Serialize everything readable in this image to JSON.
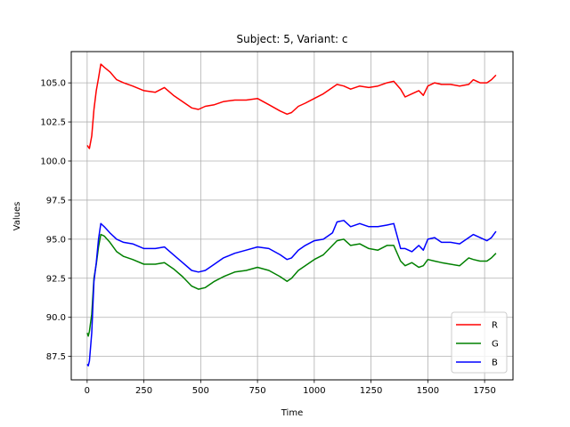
{
  "chart_data": {
    "type": "line",
    "title": "Subject: 5, Variant: c",
    "xlabel": "Time",
    "ylabel": "Values",
    "xlim": [
      -70,
      1875
    ],
    "ylim": [
      86.0,
      107.0
    ],
    "xticks": [
      0,
      250,
      500,
      750,
      1000,
      1250,
      1500,
      1750
    ],
    "yticks": [
      87.5,
      90.0,
      92.5,
      95.0,
      97.5,
      100.0,
      102.5,
      105.0
    ],
    "grid": true,
    "legend_position": "lower-right",
    "series": [
      {
        "name": "R",
        "color": "#ff0000",
        "x": [
          0,
          10,
          20,
          30,
          40,
          50,
          60,
          75,
          100,
          130,
          160,
          200,
          250,
          300,
          340,
          380,
          420,
          460,
          490,
          520,
          560,
          600,
          650,
          700,
          750,
          800,
          850,
          880,
          900,
          930,
          960,
          1000,
          1040,
          1080,
          1100,
          1130,
          1160,
          1200,
          1240,
          1280,
          1320,
          1350,
          1380,
          1400,
          1430,
          1460,
          1480,
          1500,
          1530,
          1560,
          1600,
          1640,
          1680,
          1700,
          1730,
          1760,
          1780,
          1800
        ],
        "y": [
          101.0,
          100.8,
          101.6,
          103.3,
          104.5,
          105.3,
          106.2,
          106.0,
          105.7,
          105.2,
          105.0,
          104.8,
          104.5,
          104.4,
          104.7,
          104.2,
          103.8,
          103.4,
          103.3,
          103.5,
          103.6,
          103.8,
          103.9,
          103.9,
          104.0,
          103.6,
          103.2,
          103.0,
          103.1,
          103.5,
          103.7,
          104.0,
          104.3,
          104.7,
          104.9,
          104.8,
          104.6,
          104.8,
          104.7,
          104.8,
          105.0,
          105.1,
          104.6,
          104.1,
          104.3,
          104.5,
          104.2,
          104.8,
          105.0,
          104.9,
          104.9,
          104.8,
          104.9,
          105.2,
          105.0,
          105.0,
          105.2,
          105.5
        ]
      },
      {
        "name": "G",
        "color": "#008000",
        "x": [
          0,
          5,
          10,
          20,
          30,
          40,
          50,
          60,
          75,
          100,
          130,
          160,
          200,
          250,
          300,
          340,
          380,
          420,
          460,
          490,
          520,
          560,
          600,
          650,
          700,
          750,
          800,
          850,
          880,
          900,
          930,
          960,
          1000,
          1040,
          1080,
          1100,
          1130,
          1160,
          1200,
          1240,
          1280,
          1320,
          1350,
          1380,
          1400,
          1430,
          1460,
          1480,
          1500,
          1530,
          1560,
          1600,
          1640,
          1680,
          1700,
          1730,
          1760,
          1780,
          1800
        ],
        "y": [
          89.0,
          88.8,
          89.1,
          90.2,
          92.5,
          93.4,
          94.5,
          95.3,
          95.2,
          94.8,
          94.2,
          93.9,
          93.7,
          93.4,
          93.4,
          93.5,
          93.1,
          92.6,
          92.0,
          91.8,
          91.9,
          92.3,
          92.6,
          92.9,
          93.0,
          93.2,
          93.0,
          92.6,
          92.3,
          92.5,
          93.0,
          93.3,
          93.7,
          94.0,
          94.6,
          94.9,
          95.0,
          94.6,
          94.7,
          94.4,
          94.3,
          94.6,
          94.6,
          93.6,
          93.3,
          93.5,
          93.2,
          93.3,
          93.7,
          93.6,
          93.5,
          93.4,
          93.3,
          93.8,
          93.7,
          93.6,
          93.6,
          93.8,
          94.1
        ]
      },
      {
        "name": "B",
        "color": "#0000ff",
        "x": [
          0,
          5,
          10,
          20,
          30,
          40,
          50,
          60,
          75,
          100,
          130,
          160,
          200,
          250,
          300,
          340,
          380,
          420,
          460,
          490,
          520,
          560,
          600,
          650,
          700,
          750,
          800,
          850,
          880,
          900,
          930,
          960,
          1000,
          1040,
          1080,
          1100,
          1130,
          1160,
          1200,
          1240,
          1280,
          1320,
          1350,
          1380,
          1400,
          1430,
          1460,
          1480,
          1500,
          1530,
          1560,
          1600,
          1640,
          1680,
          1700,
          1730,
          1760,
          1780,
          1800
        ],
        "y": [
          87.0,
          86.9,
          87.2,
          89.0,
          92.3,
          93.5,
          95.0,
          96.0,
          95.8,
          95.4,
          95.0,
          94.8,
          94.7,
          94.4,
          94.4,
          94.5,
          94.0,
          93.5,
          93.0,
          92.9,
          93.0,
          93.4,
          93.8,
          94.1,
          94.3,
          94.5,
          94.4,
          94.0,
          93.7,
          93.8,
          94.3,
          94.6,
          94.9,
          95.0,
          95.4,
          96.1,
          96.2,
          95.8,
          96.0,
          95.8,
          95.8,
          95.9,
          96.0,
          94.4,
          94.4,
          94.2,
          94.6,
          94.3,
          95.0,
          95.1,
          94.8,
          94.8,
          94.7,
          95.1,
          95.3,
          95.1,
          94.9,
          95.1,
          95.5
        ]
      }
    ]
  }
}
